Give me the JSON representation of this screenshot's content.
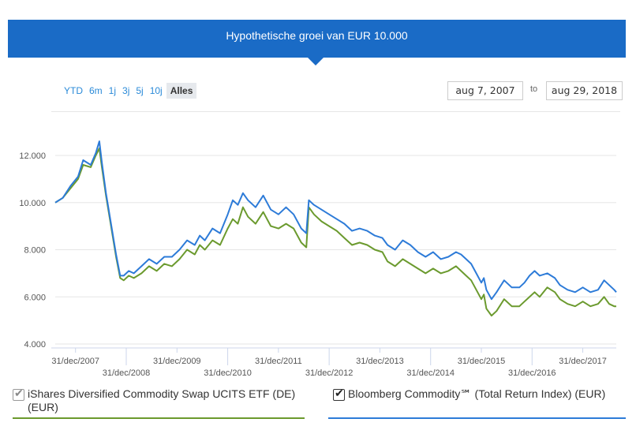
{
  "header": {
    "title": "Hypothetische groei van EUR 10.000"
  },
  "range_buttons": [
    "YTD",
    "6m",
    "1j",
    "3j",
    "5j",
    "10j",
    "Alles"
  ],
  "range_active": "Alles",
  "date_range": {
    "from": "aug 7, 2007",
    "to_label": "to",
    "to": "aug 29, 2018"
  },
  "legend": {
    "series1": "iShares Diversified Commodity Swap UCITS ETF (DE) (EUR)",
    "series2": "Bloomberg Commodity℠ (Total Return Index) (EUR)"
  },
  "colors": {
    "header": "#1a6bc6",
    "series1": "#6b9a2e",
    "series2": "#2d7bd8"
  },
  "chart_data": {
    "type": "line",
    "title": "Hypothetische groei van EUR 10.000",
    "x_unit": "year",
    "xlim": [
      2007.6,
      2018.66
    ],
    "ylim": [
      4000,
      13000
    ],
    "y_ticks": [
      4000,
      6000,
      8000,
      10000,
      12000
    ],
    "y_tick_labels": [
      "4.000",
      "6.000",
      "8.000",
      "10.000",
      "12.000"
    ],
    "x_ticks": [
      {
        "x": 2008.0,
        "label": "31/dec/2007"
      },
      {
        "x": 2009.0,
        "label": "31/dec/2008"
      },
      {
        "x": 2010.0,
        "label": "31/dec/2009"
      },
      {
        "x": 2011.0,
        "label": "31/dec/2010"
      },
      {
        "x": 2012.0,
        "label": "31/dec/2011"
      },
      {
        "x": 2013.0,
        "label": "31/dec/2012"
      },
      {
        "x": 2014.0,
        "label": "31/dec/2013"
      },
      {
        "x": 2015.0,
        "label": "31/dec/2014"
      },
      {
        "x": 2016.0,
        "label": "31/dec/2015"
      },
      {
        "x": 2017.0,
        "label": "31/dec/2016"
      },
      {
        "x": 2018.0,
        "label": "31/dec/2017"
      }
    ],
    "series": [
      {
        "name": "iShares Diversified Commodity Swap UCITS ETF (DE) (EUR)",
        "color": "#6b9a2e",
        "points": [
          [
            2007.6,
            10000
          ],
          [
            2007.75,
            10200
          ],
          [
            2007.9,
            10600
          ],
          [
            2008.05,
            11000
          ],
          [
            2008.15,
            11600
          ],
          [
            2008.3,
            11500
          ],
          [
            2008.4,
            12000
          ],
          [
            2008.47,
            12300
          ],
          [
            2008.52,
            11500
          ],
          [
            2008.6,
            10300
          ],
          [
            2008.7,
            9000
          ],
          [
            2008.8,
            7700
          ],
          [
            2008.88,
            6800
          ],
          [
            2008.95,
            6700
          ],
          [
            2009.05,
            6900
          ],
          [
            2009.15,
            6800
          ],
          [
            2009.3,
            7000
          ],
          [
            2009.45,
            7300
          ],
          [
            2009.6,
            7100
          ],
          [
            2009.75,
            7400
          ],
          [
            2009.9,
            7300
          ],
          [
            2010.05,
            7600
          ],
          [
            2010.2,
            8000
          ],
          [
            2010.35,
            7800
          ],
          [
            2010.45,
            8200
          ],
          [
            2010.55,
            8000
          ],
          [
            2010.7,
            8400
          ],
          [
            2010.85,
            8200
          ],
          [
            2011.0,
            8900
          ],
          [
            2011.1,
            9300
          ],
          [
            2011.2,
            9100
          ],
          [
            2011.3,
            9800
          ],
          [
            2011.4,
            9400
          ],
          [
            2011.55,
            9100
          ],
          [
            2011.7,
            9600
          ],
          [
            2011.85,
            9000
          ],
          [
            2012.0,
            8900
          ],
          [
            2012.15,
            9100
          ],
          [
            2012.3,
            8900
          ],
          [
            2012.45,
            8300
          ],
          [
            2012.55,
            8100
          ],
          [
            2012.6,
            9800
          ],
          [
            2012.7,
            9500
          ],
          [
            2012.85,
            9200
          ],
          [
            2013.0,
            9000
          ],
          [
            2013.15,
            8800
          ],
          [
            2013.3,
            8500
          ],
          [
            2013.45,
            8200
          ],
          [
            2013.6,
            8300
          ],
          [
            2013.75,
            8200
          ],
          [
            2013.9,
            8000
          ],
          [
            2014.05,
            7900
          ],
          [
            2014.15,
            7500
          ],
          [
            2014.3,
            7300
          ],
          [
            2014.45,
            7600
          ],
          [
            2014.6,
            7400
          ],
          [
            2014.75,
            7200
          ],
          [
            2014.9,
            7000
          ],
          [
            2015.05,
            7200
          ],
          [
            2015.2,
            7000
          ],
          [
            2015.35,
            7100
          ],
          [
            2015.5,
            7300
          ],
          [
            2015.6,
            7100
          ],
          [
            2015.7,
            6900
          ],
          [
            2015.8,
            6700
          ],
          [
            2015.9,
            6300
          ],
          [
            2016.0,
            5900
          ],
          [
            2016.05,
            6100
          ],
          [
            2016.1,
            5500
          ],
          [
            2016.2,
            5200
          ],
          [
            2016.3,
            5400
          ],
          [
            2016.45,
            5900
          ],
          [
            2016.6,
            5600
          ],
          [
            2016.75,
            5600
          ],
          [
            2016.85,
            5800
          ],
          [
            2016.95,
            6000
          ],
          [
            2017.05,
            6200
          ],
          [
            2017.15,
            6000
          ],
          [
            2017.3,
            6400
          ],
          [
            2017.45,
            6200
          ],
          [
            2017.55,
            5900
          ],
          [
            2017.7,
            5700
          ],
          [
            2017.85,
            5600
          ],
          [
            2018.0,
            5800
          ],
          [
            2018.15,
            5600
          ],
          [
            2018.3,
            5700
          ],
          [
            2018.42,
            6000
          ],
          [
            2018.52,
            5700
          ],
          [
            2018.62,
            5600
          ],
          [
            2018.66,
            5600
          ]
        ]
      },
      {
        "name": "Bloomberg Commodity℠ (Total Return Index) (EUR)",
        "color": "#2d7bd8",
        "points": [
          [
            2007.6,
            10000
          ],
          [
            2007.75,
            10200
          ],
          [
            2007.9,
            10700
          ],
          [
            2008.05,
            11100
          ],
          [
            2008.15,
            11800
          ],
          [
            2008.3,
            11600
          ],
          [
            2008.4,
            12100
          ],
          [
            2008.47,
            12600
          ],
          [
            2008.52,
            11700
          ],
          [
            2008.6,
            10400
          ],
          [
            2008.7,
            9100
          ],
          [
            2008.8,
            7800
          ],
          [
            2008.88,
            6900
          ],
          [
            2008.95,
            6900
          ],
          [
            2009.05,
            7100
          ],
          [
            2009.15,
            7000
          ],
          [
            2009.3,
            7300
          ],
          [
            2009.45,
            7600
          ],
          [
            2009.6,
            7400
          ],
          [
            2009.75,
            7700
          ],
          [
            2009.9,
            7700
          ],
          [
            2010.05,
            8000
          ],
          [
            2010.2,
            8400
          ],
          [
            2010.35,
            8200
          ],
          [
            2010.45,
            8600
          ],
          [
            2010.55,
            8400
          ],
          [
            2010.7,
            8900
          ],
          [
            2010.85,
            8700
          ],
          [
            2011.0,
            9500
          ],
          [
            2011.1,
            10100
          ],
          [
            2011.2,
            9900
          ],
          [
            2011.3,
            10400
          ],
          [
            2011.4,
            10100
          ],
          [
            2011.55,
            9800
          ],
          [
            2011.7,
            10300
          ],
          [
            2011.85,
            9700
          ],
          [
            2012.0,
            9500
          ],
          [
            2012.15,
            9800
          ],
          [
            2012.3,
            9500
          ],
          [
            2012.45,
            8900
          ],
          [
            2012.55,
            8700
          ],
          [
            2012.6,
            10100
          ],
          [
            2012.7,
            9900
          ],
          [
            2012.85,
            9700
          ],
          [
            2013.0,
            9500
          ],
          [
            2013.15,
            9300
          ],
          [
            2013.3,
            9100
          ],
          [
            2013.45,
            8800
          ],
          [
            2013.6,
            8900
          ],
          [
            2013.75,
            8800
          ],
          [
            2013.9,
            8600
          ],
          [
            2014.05,
            8500
          ],
          [
            2014.15,
            8200
          ],
          [
            2014.3,
            8000
          ],
          [
            2014.45,
            8400
          ],
          [
            2014.6,
            8200
          ],
          [
            2014.75,
            7900
          ],
          [
            2014.9,
            7700
          ],
          [
            2015.05,
            7900
          ],
          [
            2015.2,
            7600
          ],
          [
            2015.35,
            7700
          ],
          [
            2015.5,
            7900
          ],
          [
            2015.6,
            7800
          ],
          [
            2015.7,
            7600
          ],
          [
            2015.8,
            7400
          ],
          [
            2015.9,
            7000
          ],
          [
            2016.0,
            6600
          ],
          [
            2016.05,
            6800
          ],
          [
            2016.1,
            6300
          ],
          [
            2016.2,
            5900
          ],
          [
            2016.3,
            6200
          ],
          [
            2016.45,
            6700
          ],
          [
            2016.6,
            6400
          ],
          [
            2016.75,
            6400
          ],
          [
            2016.85,
            6600
          ],
          [
            2016.95,
            6900
          ],
          [
            2017.05,
            7100
          ],
          [
            2017.15,
            6900
          ],
          [
            2017.3,
            7000
          ],
          [
            2017.45,
            6800
          ],
          [
            2017.55,
            6500
          ],
          [
            2017.7,
            6300
          ],
          [
            2017.85,
            6200
          ],
          [
            2018.0,
            6400
          ],
          [
            2018.15,
            6200
          ],
          [
            2018.3,
            6300
          ],
          [
            2018.42,
            6700
          ],
          [
            2018.52,
            6500
          ],
          [
            2018.62,
            6300
          ],
          [
            2018.66,
            6200
          ]
        ]
      }
    ]
  }
}
